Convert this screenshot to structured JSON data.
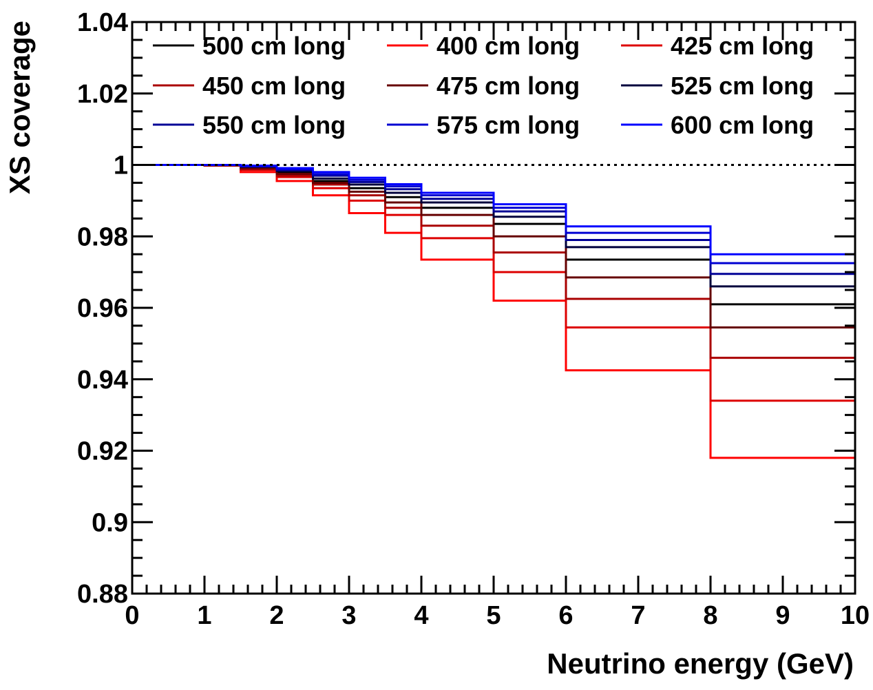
{
  "chart_data": {
    "type": "line",
    "title": "",
    "xlabel": "Neutrino energy (GeV)",
    "ylabel": "XS coverage",
    "xlim": [
      0,
      10
    ],
    "ylim": [
      0.88,
      1.04
    ],
    "x_ticks": [
      "0",
      "1",
      "2",
      "3",
      "4",
      "5",
      "6",
      "7",
      "8",
      "9",
      "10"
    ],
    "y_ticks": [
      "0.88",
      "0.9",
      "0.92",
      "0.94",
      "0.96",
      "0.98",
      "1",
      "1.02",
      "1.04"
    ],
    "grid": false,
    "legend_position": "top",
    "reference_line": {
      "y": 1,
      "style": "dotted"
    },
    "bin_edges": [
      0,
      0.5,
      1,
      1.5,
      2,
      2.5,
      3,
      3.5,
      4,
      5,
      6,
      8,
      10
    ],
    "series": [
      {
        "name": "500 cm long",
        "color": "#000000",
        "values": [
          1.0,
          1.0,
          1.0,
          0.9994,
          0.998,
          0.9955,
          0.9935,
          0.991,
          0.988,
          0.9835,
          0.9735,
          0.961
        ]
      },
      {
        "name": "400 cm long",
        "color": "#ff0000",
        "values": [
          1.0,
          1.0,
          0.9998,
          0.998,
          0.9955,
          0.9915,
          0.9865,
          0.981,
          0.9735,
          0.962,
          0.9425,
          0.918
        ]
      },
      {
        "name": "425 cm long",
        "color": "#dd0000",
        "values": [
          1.0,
          1.0,
          0.9998,
          0.9986,
          0.9966,
          0.9935,
          0.99,
          0.986,
          0.9795,
          0.97,
          0.9545,
          0.934
        ]
      },
      {
        "name": "450 cm long",
        "color": "#aa0000",
        "values": [
          1.0,
          1.0,
          0.9999,
          0.9988,
          0.997,
          0.9945,
          0.9915,
          0.988,
          0.983,
          0.9755,
          0.9625,
          0.946
        ]
      },
      {
        "name": "475 cm long",
        "color": "#660000",
        "values": [
          1.0,
          1.0,
          0.9999,
          0.9991,
          0.9975,
          0.995,
          0.9925,
          0.9895,
          0.986,
          0.98,
          0.9685,
          0.9545
        ]
      },
      {
        "name": "525 cm long",
        "color": "#00003c",
        "values": [
          1.0,
          1.0,
          1.0,
          0.9995,
          0.9983,
          0.9962,
          0.9945,
          0.9922,
          0.9895,
          0.9855,
          0.977,
          0.966
        ]
      },
      {
        "name": "550 cm long",
        "color": "#000096",
        "values": [
          1.0,
          1.0,
          1.0,
          0.9996,
          0.9986,
          0.997,
          0.9952,
          0.9932,
          0.9905,
          0.987,
          0.979,
          0.9695
        ]
      },
      {
        "name": "575 cm long",
        "color": "#0000d2",
        "values": [
          1.0,
          1.0,
          1.0,
          0.9997,
          0.9988,
          0.9974,
          0.9958,
          0.994,
          0.9915,
          0.988,
          0.981,
          0.9725
        ]
      },
      {
        "name": "600 cm long",
        "color": "#0000ff",
        "values": [
          1.0,
          1.0,
          1.0,
          0.9998,
          0.9991,
          0.998,
          0.9964,
          0.9946,
          0.9922,
          0.989,
          0.9828,
          0.975
        ]
      }
    ]
  }
}
